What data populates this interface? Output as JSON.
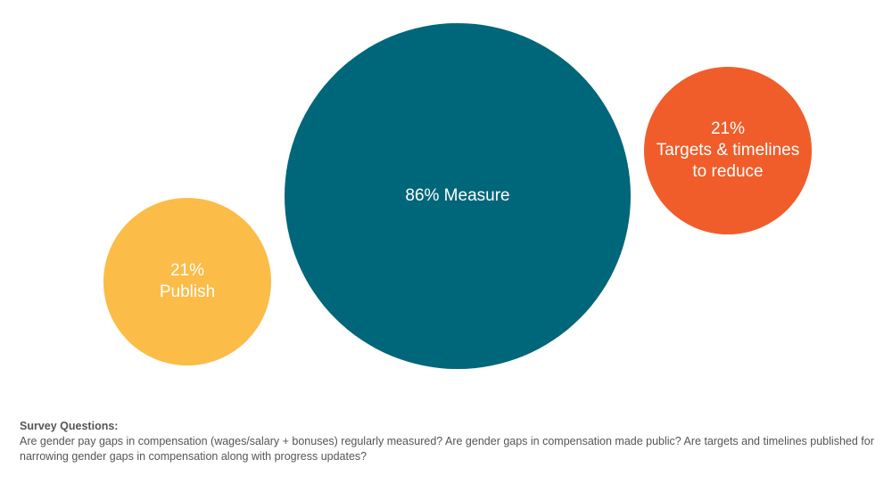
{
  "chart_data": {
    "type": "bubble",
    "title": "",
    "bubbles": [
      {
        "label_lines": [
          "21%",
          "Publish"
        ],
        "value": 21,
        "color": "#fbbc48"
      },
      {
        "label_lines": [
          "86% Measure"
        ],
        "value": 86,
        "color": "#00667a"
      },
      {
        "label_lines": [
          "21%",
          "Targets & timelines",
          "to reduce"
        ],
        "value": 21,
        "color": "#f05d2a"
      }
    ]
  },
  "notes": {
    "heading": "Survey Questions:",
    "body": "Are gender pay gaps in compensation (wages/salary + bonuses) regularly measured? Are gender gaps in compensation made public? Are targets and timelines published for narrowing gender gaps in compensation along with progress updates?"
  }
}
